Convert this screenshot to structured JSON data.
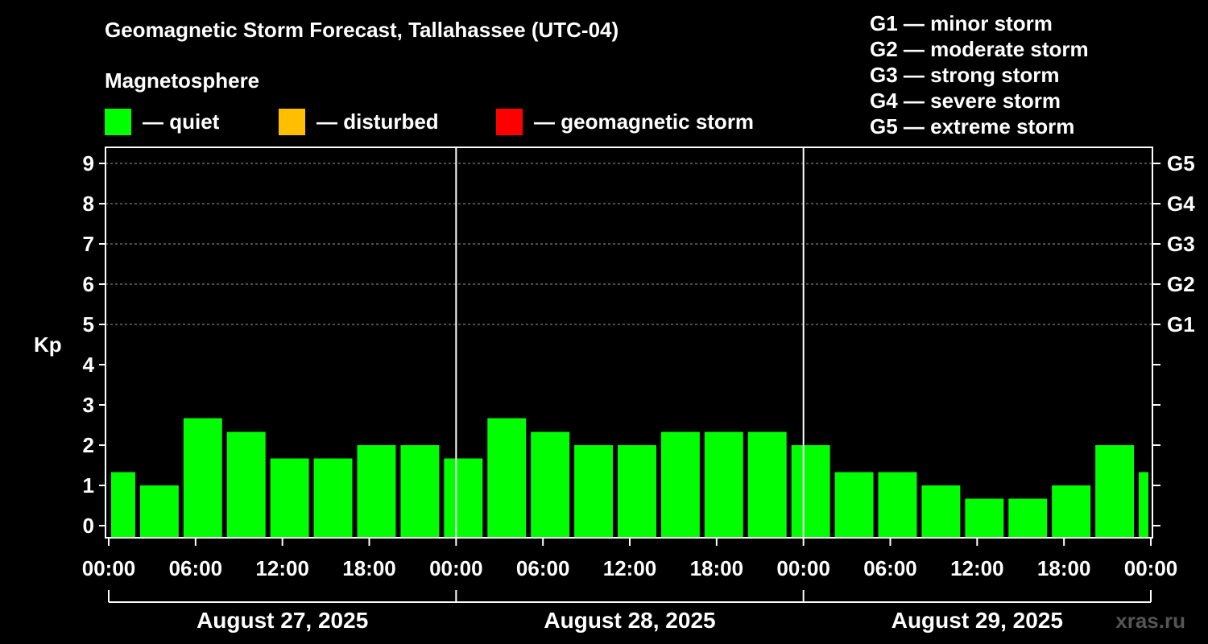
{
  "title": "Geomagnetic Storm Forecast, Tallahassee (UTC-04)",
  "legend": {
    "heading": "Magnetosphere",
    "items": [
      {
        "label": "— quiet",
        "color": "#00ff00"
      },
      {
        "label": "— disturbed",
        "color": "#ffbf00"
      },
      {
        "label": "— geomagnetic storm",
        "color": "#ff0000"
      }
    ]
  },
  "storm_scale": [
    {
      "text": "G1 — minor storm"
    },
    {
      "text": "G2 — moderate storm"
    },
    {
      "text": "G3 — strong storm"
    },
    {
      "text": "G4 — severe storm"
    },
    {
      "text": "G5 — extreme storm"
    }
  ],
  "watermark": "xras.ru",
  "chart_data": {
    "type": "bar",
    "title": "Geomagnetic Storm Forecast, Tallahassee (UTC-04)",
    "ylabel": "Kp",
    "xlabel": "",
    "ylim": [
      -0.3,
      9.4
    ],
    "yticks": [
      "0",
      "1",
      "2",
      "3",
      "4",
      "5",
      "6",
      "7",
      "8",
      "9"
    ],
    "right_ticks": [
      {
        "kp": 5,
        "label": "G1"
      },
      {
        "kp": 6,
        "label": "G2"
      },
      {
        "kp": 7,
        "label": "G3"
      },
      {
        "kp": 8,
        "label": "G4"
      },
      {
        "kp": 9,
        "label": "G5"
      }
    ],
    "x_hours_range": [
      0,
      72
    ],
    "xtick_labels": [
      "00:00",
      "06:00",
      "12:00",
      "18:00",
      "00:00",
      "06:00",
      "12:00",
      "18:00",
      "00:00",
      "06:00",
      "12:00",
      "18:00",
      "00:00"
    ],
    "day_labels": [
      "August 27, 2025",
      "August 28, 2025",
      "August 29, 2025"
    ],
    "bars": [
      {
        "start_hour": 0,
        "end_hour": 2,
        "kp": 1.33,
        "level": "quiet"
      },
      {
        "start_hour": 2,
        "end_hour": 5,
        "kp": 1.0,
        "level": "quiet"
      },
      {
        "start_hour": 5,
        "end_hour": 8,
        "kp": 2.67,
        "level": "quiet"
      },
      {
        "start_hour": 8,
        "end_hour": 11,
        "kp": 2.33,
        "level": "quiet"
      },
      {
        "start_hour": 11,
        "end_hour": 14,
        "kp": 1.67,
        "level": "quiet"
      },
      {
        "start_hour": 14,
        "end_hour": 17,
        "kp": 1.67,
        "level": "quiet"
      },
      {
        "start_hour": 17,
        "end_hour": 20,
        "kp": 2.0,
        "level": "quiet"
      },
      {
        "start_hour": 20,
        "end_hour": 23,
        "kp": 2.0,
        "level": "quiet"
      },
      {
        "start_hour": 23,
        "end_hour": 26,
        "kp": 1.67,
        "level": "quiet"
      },
      {
        "start_hour": 26,
        "end_hour": 29,
        "kp": 2.67,
        "level": "quiet"
      },
      {
        "start_hour": 29,
        "end_hour": 32,
        "kp": 2.33,
        "level": "quiet"
      },
      {
        "start_hour": 32,
        "end_hour": 35,
        "kp": 2.0,
        "level": "quiet"
      },
      {
        "start_hour": 35,
        "end_hour": 38,
        "kp": 2.0,
        "level": "quiet"
      },
      {
        "start_hour": 38,
        "end_hour": 41,
        "kp": 2.33,
        "level": "quiet"
      },
      {
        "start_hour": 41,
        "end_hour": 44,
        "kp": 2.33,
        "level": "quiet"
      },
      {
        "start_hour": 44,
        "end_hour": 47,
        "kp": 2.33,
        "level": "quiet"
      },
      {
        "start_hour": 47,
        "end_hour": 50,
        "kp": 2.0,
        "level": "quiet"
      },
      {
        "start_hour": 50,
        "end_hour": 53,
        "kp": 1.33,
        "level": "quiet"
      },
      {
        "start_hour": 53,
        "end_hour": 56,
        "kp": 1.33,
        "level": "quiet"
      },
      {
        "start_hour": 56,
        "end_hour": 59,
        "kp": 1.0,
        "level": "quiet"
      },
      {
        "start_hour": 59,
        "end_hour": 62,
        "kp": 0.67,
        "level": "quiet"
      },
      {
        "start_hour": 62,
        "end_hour": 65,
        "kp": 0.67,
        "level": "quiet"
      },
      {
        "start_hour": 65,
        "end_hour": 68,
        "kp": 1.0,
        "level": "quiet"
      },
      {
        "start_hour": 68,
        "end_hour": 71,
        "kp": 2.0,
        "level": "quiet"
      },
      {
        "start_hour": 71,
        "end_hour": 72,
        "kp": 1.33,
        "level": "quiet"
      }
    ],
    "level_colors": {
      "quiet": "#00ff00",
      "disturbed": "#ffbf00",
      "storm": "#ff0000"
    }
  }
}
